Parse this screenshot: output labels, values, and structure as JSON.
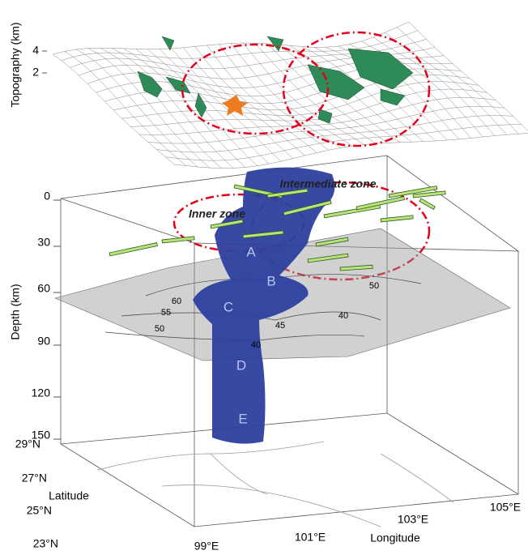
{
  "axes": {
    "topography": {
      "label": "Topography (km)",
      "ticks": [
        "4",
        "2"
      ]
    },
    "depth": {
      "label": "Depth (km)",
      "ticks": [
        "0",
        "30",
        "60",
        "90",
        "120",
        "150"
      ]
    },
    "latitude": {
      "label": "Latitude",
      "ticks": [
        "29°N",
        "27°N",
        "25°N",
        "23°N"
      ]
    },
    "longitude": {
      "label": "Longitude",
      "ticks": [
        "99°E",
        "101°E",
        "103°E",
        "105°E"
      ]
    }
  },
  "zones": [
    "Intermediate zone",
    "Inner zone"
  ],
  "segments": [
    "A",
    "B",
    "C",
    "D",
    "E"
  ],
  "contours": [
    "50",
    "60",
    "55",
    "50",
    "45",
    "40",
    "40"
  ]
}
